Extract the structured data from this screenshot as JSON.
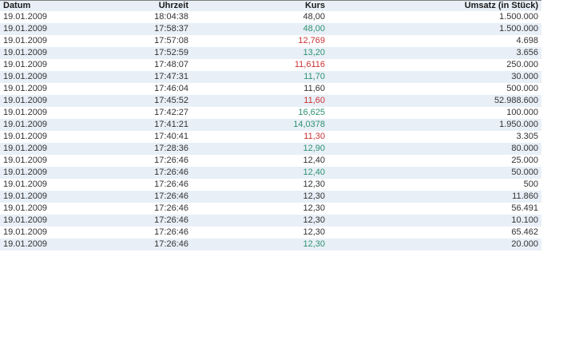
{
  "colors": {
    "positive_kurs": "#2e9271",
    "negative_kurs": "#cc3333",
    "neutral_text": "#333333",
    "row_alt_bg": "#e8eff7",
    "header_bg": "#e8eff7",
    "top_rule": "#7f7f7f",
    "page_bg": "#ffffff"
  },
  "table": {
    "columns": [
      {
        "key": "datum",
        "label": "Datum",
        "align": "left"
      },
      {
        "key": "uhrzeit",
        "label": "Uhrzeit",
        "align": "right"
      },
      {
        "key": "kurs",
        "label": "Kurs",
        "align": "right"
      },
      {
        "key": "umsatz",
        "label": "Umsatz (in Stück)",
        "align": "right"
      }
    ],
    "rows": [
      {
        "datum": "19.01.2009",
        "uhrzeit": "18:04:38",
        "kurs": "48,00",
        "trend": "neutral",
        "umsatz": "1.500.000"
      },
      {
        "datum": "19.01.2009",
        "uhrzeit": "17:58:37",
        "kurs": "48,00",
        "trend": "up",
        "umsatz": "1.500.000"
      },
      {
        "datum": "19.01.2009",
        "uhrzeit": "17:57:08",
        "kurs": "12,769",
        "trend": "down",
        "umsatz": "4.698"
      },
      {
        "datum": "19.01.2009",
        "uhrzeit": "17:52:59",
        "kurs": "13,20",
        "trend": "up",
        "umsatz": "3.656"
      },
      {
        "datum": "19.01.2009",
        "uhrzeit": "17:48:07",
        "kurs": "11,6116",
        "trend": "down",
        "umsatz": "250.000"
      },
      {
        "datum": "19.01.2009",
        "uhrzeit": "17:47:31",
        "kurs": "11,70",
        "trend": "up",
        "umsatz": "30.000"
      },
      {
        "datum": "19.01.2009",
        "uhrzeit": "17:46:04",
        "kurs": "11,60",
        "trend": "neutral",
        "umsatz": "500.000"
      },
      {
        "datum": "19.01.2009",
        "uhrzeit": "17:45:52",
        "kurs": "11,60",
        "trend": "down",
        "umsatz": "52.988.600"
      },
      {
        "datum": "19.01.2009",
        "uhrzeit": "17:42:27",
        "kurs": "16,625",
        "trend": "up",
        "umsatz": "100.000"
      },
      {
        "datum": "19.01.2009",
        "uhrzeit": "17:41:21",
        "kurs": "14,0378",
        "trend": "up",
        "umsatz": "1.950.000"
      },
      {
        "datum": "19.01.2009",
        "uhrzeit": "17:40:41",
        "kurs": "11,30",
        "trend": "down",
        "umsatz": "3.305"
      },
      {
        "datum": "19.01.2009",
        "uhrzeit": "17:28:36",
        "kurs": "12,90",
        "trend": "up",
        "umsatz": "80.000"
      },
      {
        "datum": "19.01.2009",
        "uhrzeit": "17:26:46",
        "kurs": "12,40",
        "trend": "neutral",
        "umsatz": "25.000"
      },
      {
        "datum": "19.01.2009",
        "uhrzeit": "17:26:46",
        "kurs": "12,40",
        "trend": "up",
        "umsatz": "50.000"
      },
      {
        "datum": "19.01.2009",
        "uhrzeit": "17:26:46",
        "kurs": "12,30",
        "trend": "neutral",
        "umsatz": "500"
      },
      {
        "datum": "19.01.2009",
        "uhrzeit": "17:26:46",
        "kurs": "12,30",
        "trend": "neutral",
        "umsatz": "11.860"
      },
      {
        "datum": "19.01.2009",
        "uhrzeit": "17:26:46",
        "kurs": "12,30",
        "trend": "neutral",
        "umsatz": "56.491"
      },
      {
        "datum": "19.01.2009",
        "uhrzeit": "17:26:46",
        "kurs": "12,30",
        "trend": "neutral",
        "umsatz": "10.100"
      },
      {
        "datum": "19.01.2009",
        "uhrzeit": "17:26:46",
        "kurs": "12,30",
        "trend": "neutral",
        "umsatz": "65.462"
      },
      {
        "datum": "19.01.2009",
        "uhrzeit": "17:26:46",
        "kurs": "12,30",
        "trend": "up",
        "umsatz": "20.000"
      }
    ]
  }
}
